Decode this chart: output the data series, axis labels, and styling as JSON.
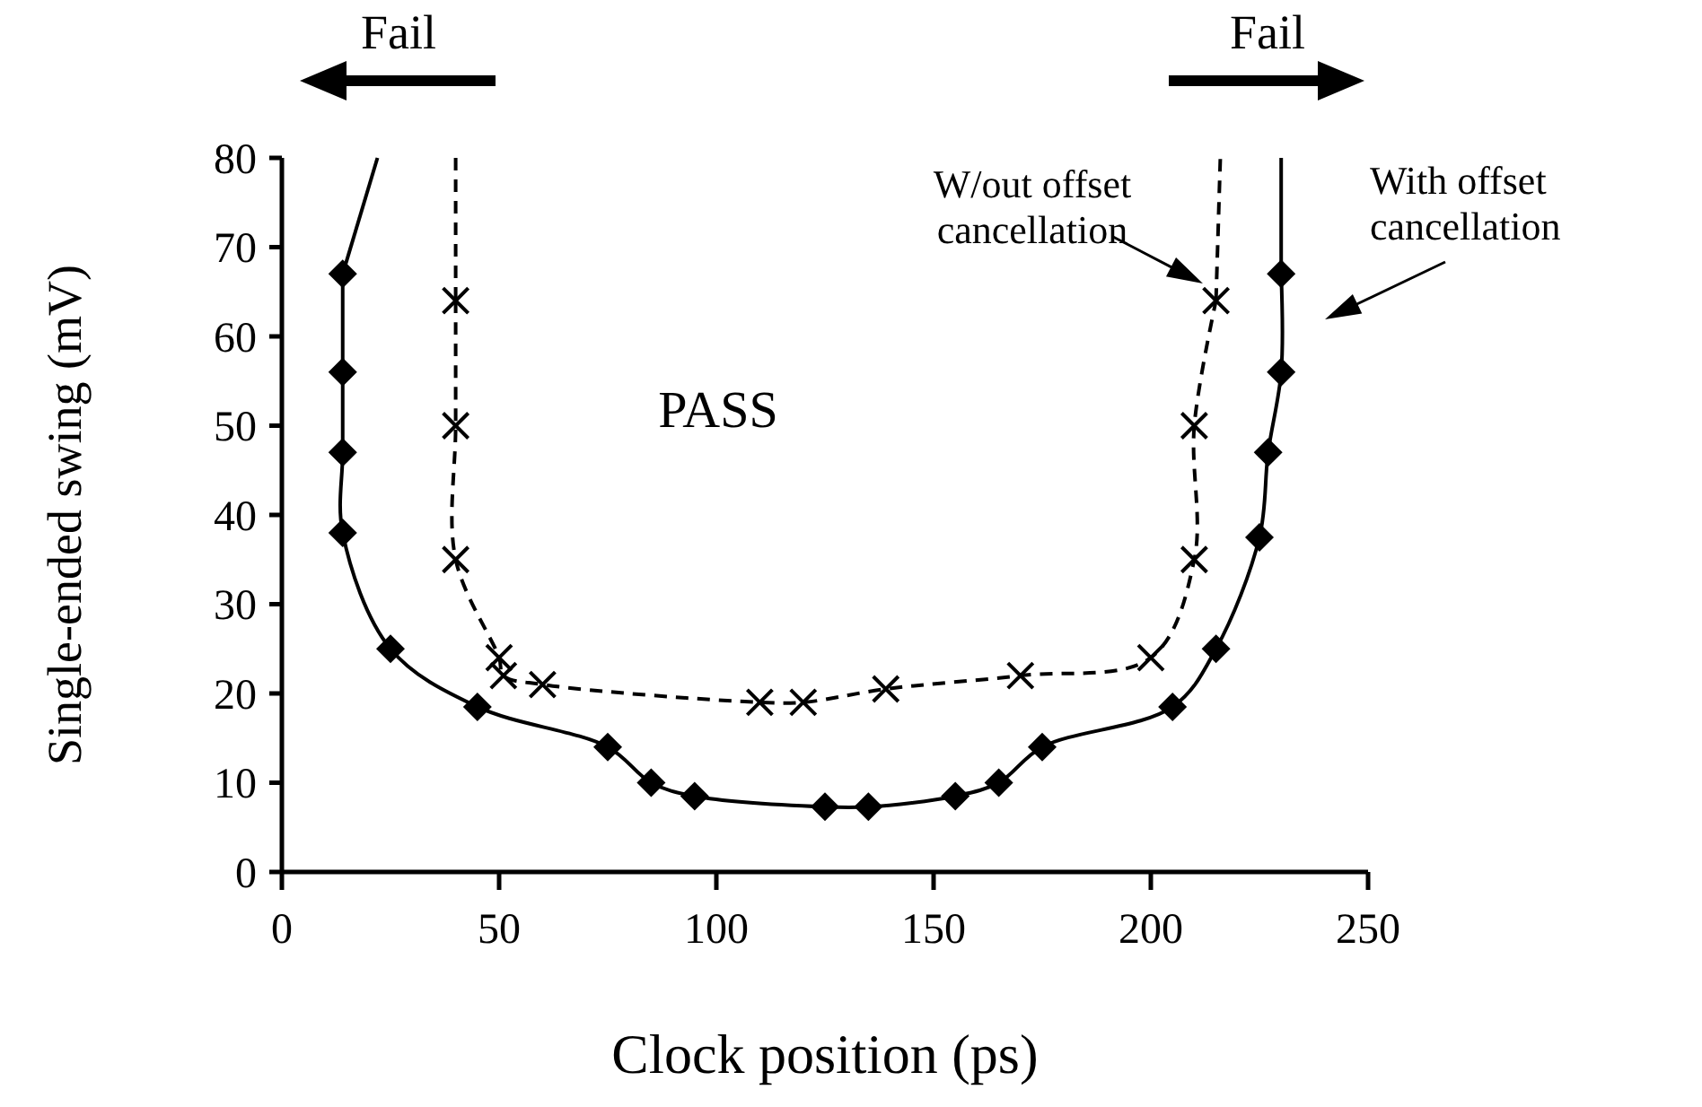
{
  "chart_data": {
    "type": "line",
    "xlabel": "Clock position (ps)",
    "ylabel": "Single-ended swing (mV)",
    "xlim": [
      0,
      250
    ],
    "xticks": [
      0,
      50,
      100,
      150,
      200,
      250
    ],
    "ylim": [
      0,
      80
    ],
    "yticks": [
      0,
      10,
      20,
      30,
      40,
      50,
      60,
      70,
      80
    ],
    "annotations": [
      "Fail",
      "Fail",
      "PASS"
    ],
    "series": [
      {
        "name": "W/out offset cancellation",
        "color": "#000000",
        "marker": "cross",
        "line_style": "dashed",
        "x": [
          40,
          40,
          40,
          50,
          51,
          60,
          110,
          120,
          139,
          170,
          200,
          210,
          210,
          215
        ],
        "values": [
          64,
          50,
          35,
          24,
          22,
          21,
          19,
          19,
          20.5,
          22,
          24,
          35,
          50,
          64
        ]
      },
      {
        "name": "With offset cancellation",
        "color": "#000000",
        "marker": "diamond",
        "line_style": "solid",
        "x": [
          14,
          14,
          14,
          14,
          25,
          45,
          75,
          85,
          95,
          125,
          135,
          155,
          165,
          175,
          205,
          215,
          225,
          227,
          230,
          230
        ],
        "values": [
          67,
          56,
          47,
          38,
          25,
          18.5,
          14,
          10,
          8.5,
          7.3,
          7.3,
          8.5,
          10,
          14,
          18.5,
          25,
          37.5,
          47,
          56,
          67
        ]
      },
      {
        "color": "#000000",
        "marker": "none",
        "line_style": "dashed",
        "x": [
          40,
          40
        ],
        "values": [
          80,
          64
        ]
      },
      {
        "color": "#000000",
        "marker": "none",
        "line_style": "dashed",
        "x": [
          215,
          216
        ],
        "values": [
          64,
          80
        ]
      },
      {
        "color": "#000000",
        "marker": "none",
        "line_style": "solid",
        "x": [
          22,
          14
        ],
        "values": [
          80,
          67
        ]
      },
      {
        "color": "#000000",
        "marker": "none",
        "line_style": "solid",
        "x": [
          230,
          230
        ],
        "values": [
          67,
          80
        ]
      }
    ]
  }
}
